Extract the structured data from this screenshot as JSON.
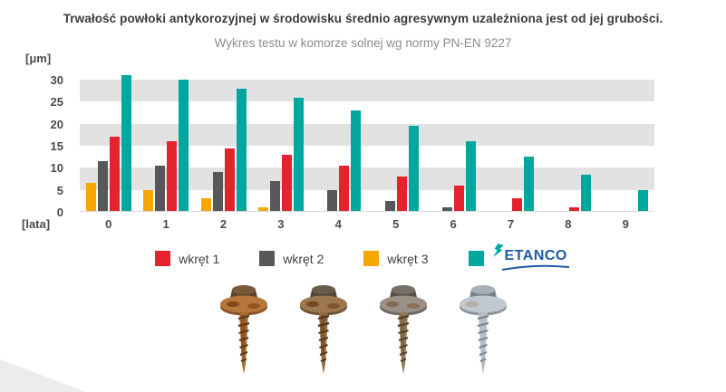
{
  "chart_data": {
    "type": "bar",
    "title": "Trwałość powłoki antykorozyjnej w środowisku średnio agresywnym uzależniona jest od jej grubości.",
    "subtitle": "Wykres testu w komorze solnej wg normy PN-EN 9227",
    "xlabel": "[lata]",
    "ylabel": "[μm]",
    "categories": [
      "0",
      "1",
      "2",
      "3",
      "4",
      "5",
      "6",
      "7",
      "8",
      "9"
    ],
    "y_ticks": [
      0,
      5,
      10,
      15,
      20,
      25,
      30
    ],
    "ylim": [
      0,
      32.5
    ],
    "grid": "alternating horizontal gray bands",
    "gray_bands": [
      [
        5,
        10
      ],
      [
        15,
        20
      ],
      [
        25,
        30
      ]
    ],
    "band_color": "#e2e2e2",
    "legend_position": "bottom",
    "series": [
      {
        "name": "wkręt 3",
        "color": "#f7a600",
        "values": [
          6.5,
          5,
          3,
          1,
          0,
          0,
          0,
          0,
          0,
          0
        ]
      },
      {
        "name": "wkręt 2",
        "color": "#58585a",
        "values": [
          11.5,
          10.5,
          9,
          7,
          5,
          2.5,
          1,
          0,
          0,
          0
        ]
      },
      {
        "name": "wkręt 1",
        "color": "#e5232e",
        "values": [
          17,
          16,
          14.5,
          13,
          10.5,
          8,
          6,
          3,
          1,
          0
        ]
      },
      {
        "name": "ETANCO",
        "color": "#00a79e",
        "values": [
          31,
          30,
          28,
          26,
          23,
          19.5,
          16,
          12.5,
          8.5,
          5
        ]
      }
    ],
    "legend": [
      {
        "label": "wkręt 1",
        "color": "#e5232e"
      },
      {
        "label": "wkręt 2",
        "color": "#58585a"
      },
      {
        "label": "wkręt 3",
        "color": "#f7a600"
      },
      {
        "label": "ETANCO",
        "color": "#00a79e",
        "logo": true
      }
    ]
  },
  "logo": {
    "text": "ETANCO",
    "text_color": "#1d5ba4",
    "bolt_color": "#00a79e"
  },
  "images": [
    "screw-photo-1",
    "screw-photo-2",
    "screw-photo-3",
    "screw-photo-4"
  ]
}
